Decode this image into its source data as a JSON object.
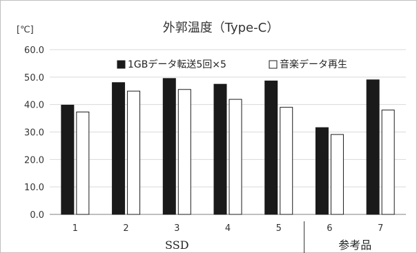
{
  "chart_data": {
    "type": "bar",
    "title": "外郭温度（Type-C）",
    "unit_label": "[℃]",
    "categories": [
      "1",
      "2",
      "3",
      "4",
      "5",
      "6",
      "7"
    ],
    "group_labels": [
      {
        "label": "SSD",
        "categories": [
          "1",
          "2",
          "3",
          "4",
          "5"
        ]
      },
      {
        "label": "参考品",
        "categories": [
          "6",
          "7"
        ]
      }
    ],
    "series": [
      {
        "name": "1GBデータ転送5回×5",
        "color": "#1a1a1a",
        "values": [
          39.8,
          48.0,
          49.5,
          47.4,
          48.6,
          31.6,
          49.0
        ]
      },
      {
        "name": "音楽データ再生",
        "color": "#ffffff",
        "values": [
          37.3,
          44.9,
          45.5,
          41.9,
          39.0,
          29.1,
          38.0
        ]
      }
    ],
    "ylim": [
      0,
      60
    ],
    "yticks": [
      "0.0",
      "10.0",
      "20.0",
      "30.0",
      "40.0",
      "50.0",
      "60.0"
    ],
    "grid": true,
    "legend_position": "top"
  }
}
